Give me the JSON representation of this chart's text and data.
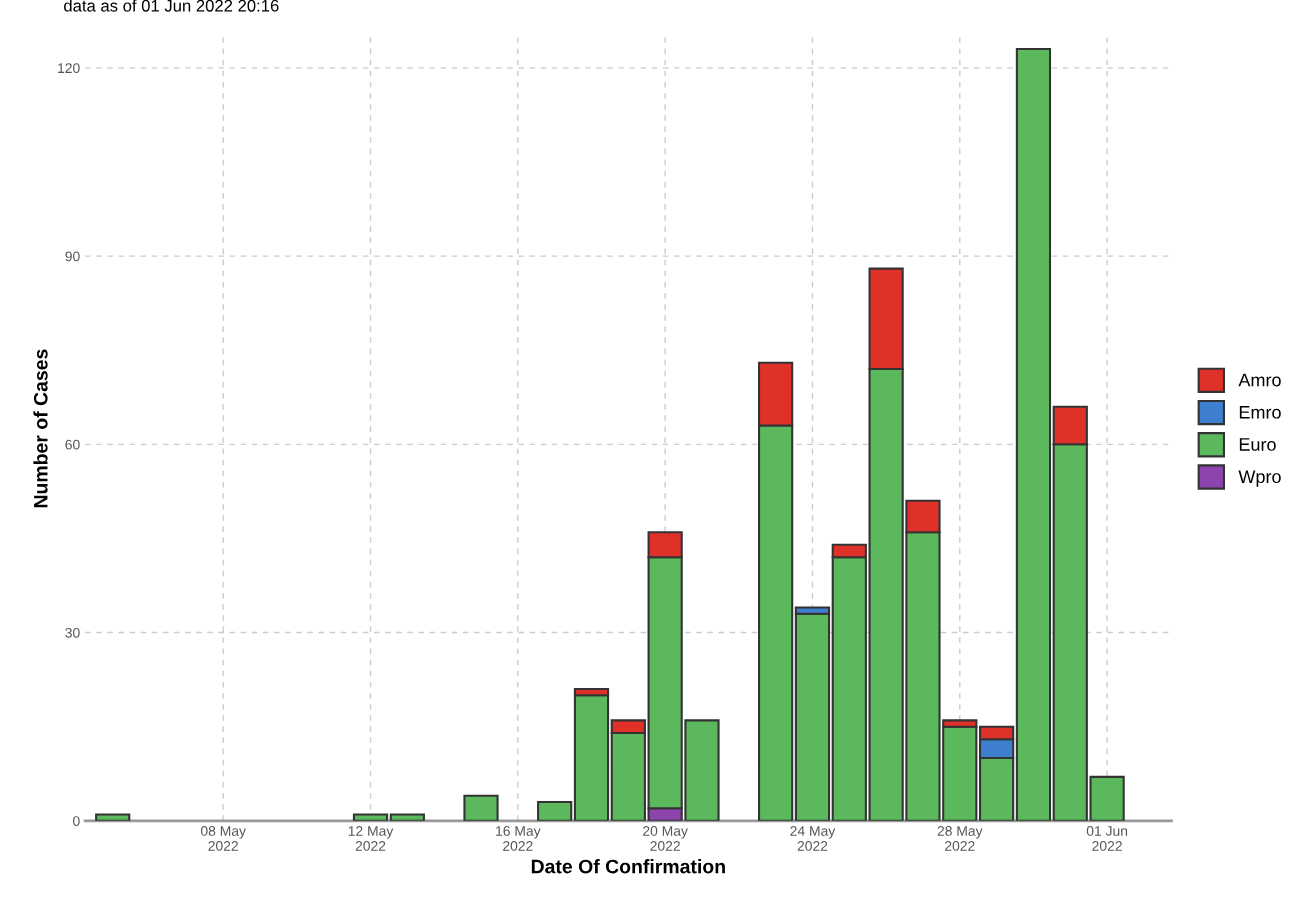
{
  "chart_data": {
    "type": "bar",
    "stacked": true,
    "title": "data as of 01 Jun 2022 20:16",
    "xlabel": "Date Of Confirmation",
    "ylabel": "Number of Cases",
    "x": [
      "2022-05-05",
      "2022-05-12",
      "2022-05-13",
      "2022-05-15",
      "2022-05-17",
      "2022-05-18",
      "2022-05-19",
      "2022-05-20",
      "2022-05-21",
      "2022-05-23",
      "2022-05-24",
      "2022-05-25",
      "2022-05-26",
      "2022-05-27",
      "2022-05-28",
      "2022-05-29",
      "2022-05-30",
      "2022-05-31",
      "2022-06-01"
    ],
    "series": [
      {
        "name": "Wpro",
        "color": "#8e44ad",
        "values": [
          null,
          null,
          null,
          null,
          null,
          null,
          null,
          2,
          null,
          null,
          null,
          null,
          null,
          null,
          null,
          null,
          null,
          null,
          null
        ]
      },
      {
        "name": "Euro",
        "color": "#5cb85c",
        "values": [
          1,
          1,
          1,
          4,
          3,
          20,
          14,
          40,
          16,
          63,
          33,
          42,
          72,
          46,
          15,
          10,
          123,
          60,
          7
        ]
      },
      {
        "name": "Emro",
        "color": "#3f7fcf",
        "values": [
          null,
          null,
          null,
          null,
          null,
          null,
          null,
          null,
          null,
          null,
          1,
          null,
          null,
          null,
          null,
          3,
          null,
          null,
          null
        ]
      },
      {
        "name": "Amro",
        "color": "#e03128",
        "values": [
          null,
          null,
          null,
          null,
          null,
          1,
          2,
          4,
          null,
          10,
          null,
          2,
          16,
          5,
          1,
          2,
          null,
          6,
          null
        ]
      }
    ],
    "xlim": [
      "2022-05-04T06:00",
      "2022-06-02T18:00"
    ],
    "xticks": [
      {
        "value": "2022-05-08",
        "label": "08 May\n2022"
      },
      {
        "value": "2022-05-12",
        "label": "12 May\n2022"
      },
      {
        "value": "2022-05-16",
        "label": "16 May\n2022"
      },
      {
        "value": "2022-05-20",
        "label": "20 May\n2022"
      },
      {
        "value": "2022-05-24",
        "label": "24 May\n2022"
      },
      {
        "value": "2022-05-28",
        "label": "28 May\n2022"
      },
      {
        "value": "2022-06-01",
        "label": "01 Jun\n2022"
      }
    ],
    "ylim": [
      0,
      125
    ],
    "yticks": [
      0,
      30,
      60,
      90,
      120
    ],
    "grid": true,
    "legend": "right"
  }
}
